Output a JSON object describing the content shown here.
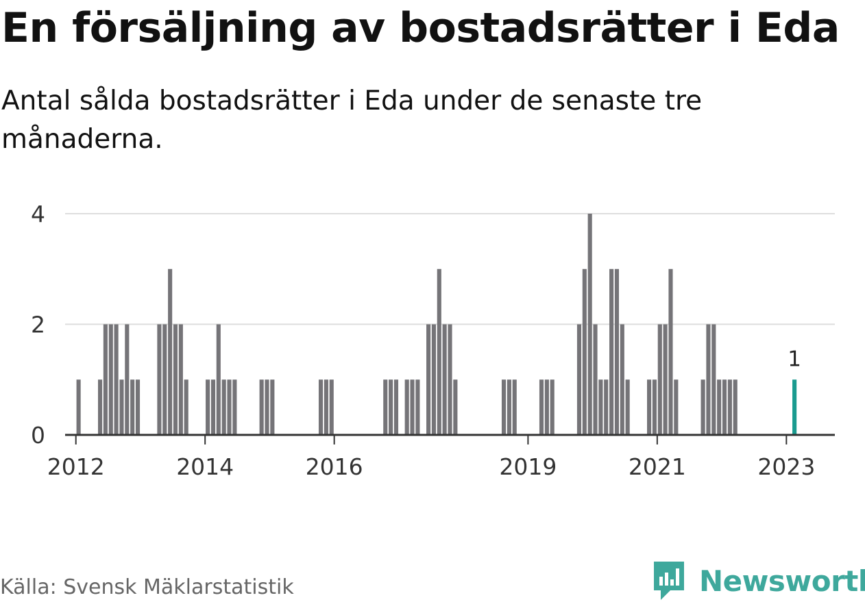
{
  "title": "En försäljning av bostadsrätter i Eda",
  "subtitle": "Antal sålda bostadsrätter i Eda under de senaste tre månaderna.",
  "source": "Källa: Svensk Mäklarstatistik",
  "brand": "Newsworthy",
  "colors": {
    "bar": "#757478",
    "highlight": "#1a9b8f",
    "grid": "#dddddd",
    "axis": "#333333",
    "brand": "#3ea89c"
  },
  "chart_data": {
    "type": "bar",
    "title": "En försäljning av bostadsrätter i Eda",
    "subtitle": "Antal sålda bostadsrätter i Eda under de senaste tre månaderna.",
    "xlabel": "",
    "ylabel": "",
    "ylim": [
      0,
      4
    ],
    "yticks": [
      0,
      2,
      4
    ],
    "xlim": [
      "2011-11",
      "2023-10"
    ],
    "xticks": [
      "2012",
      "2014",
      "2016",
      "2019",
      "2021",
      "2023"
    ],
    "grid": true,
    "highlight_label": "1",
    "categories": [
      "2012-01",
      "2012-05",
      "2012-06",
      "2012-07",
      "2012-08",
      "2012-09",
      "2012-10",
      "2012-11",
      "2012-12",
      "2013-04",
      "2013-05",
      "2013-06",
      "2013-07",
      "2013-08",
      "2013-09",
      "2014-01",
      "2014-02",
      "2014-03",
      "2014-04",
      "2014-05",
      "2014-06",
      "2014-11",
      "2014-12",
      "2015-01",
      "2015-10",
      "2015-11",
      "2015-12",
      "2016-10",
      "2016-11",
      "2016-12",
      "2017-02",
      "2017-03",
      "2017-04",
      "2017-06",
      "2017-07",
      "2017-08",
      "2017-09",
      "2017-10",
      "2017-11",
      "2018-08",
      "2018-09",
      "2018-10",
      "2019-03",
      "2019-04",
      "2019-05",
      "2019-10",
      "2019-11",
      "2019-12",
      "2020-01",
      "2020-02",
      "2020-03",
      "2020-04",
      "2020-05",
      "2020-06",
      "2020-07",
      "2020-11",
      "2020-12",
      "2021-01",
      "2021-02",
      "2021-03",
      "2021-04",
      "2021-09",
      "2021-10",
      "2021-11",
      "2021-12",
      "2022-01",
      "2022-02",
      "2022-03",
      "2023-02"
    ],
    "values": [
      1,
      1,
      2,
      2,
      2,
      1,
      2,
      1,
      1,
      2,
      2,
      3,
      2,
      2,
      1,
      1,
      1,
      2,
      1,
      1,
      1,
      1,
      1,
      1,
      1,
      1,
      1,
      1,
      1,
      1,
      1,
      1,
      1,
      2,
      2,
      3,
      2,
      2,
      1,
      1,
      1,
      1,
      1,
      1,
      1,
      2,
      3,
      4,
      2,
      1,
      1,
      3,
      3,
      2,
      1,
      1,
      1,
      2,
      2,
      3,
      1,
      1,
      2,
      2,
      1,
      1,
      1,
      1,
      1
    ],
    "highlight": "2023-02"
  }
}
